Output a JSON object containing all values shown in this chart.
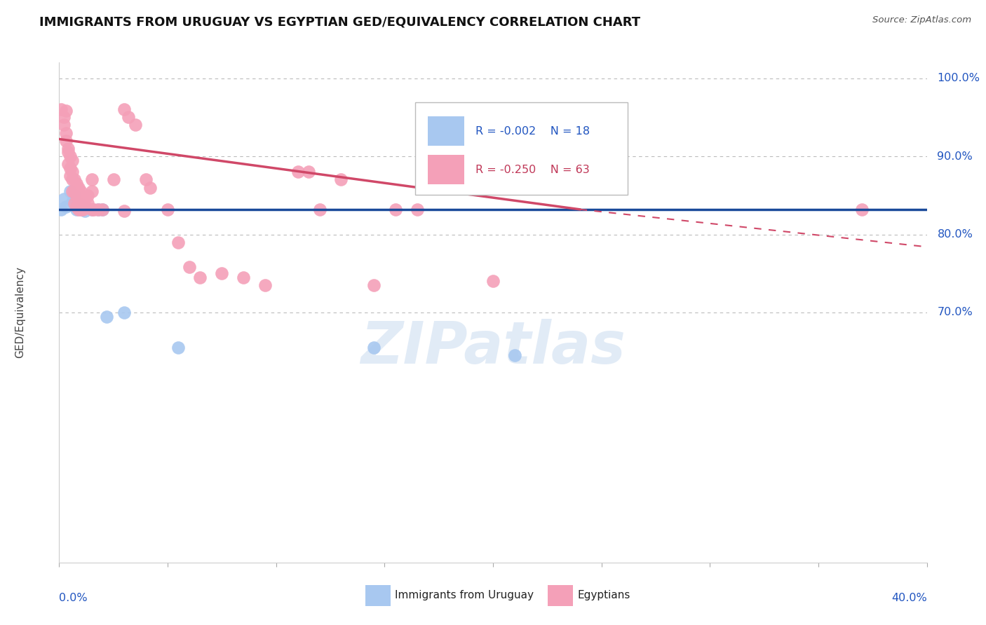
{
  "title": "IMMIGRANTS FROM URUGUAY VS EGYPTIAN GED/EQUIVALENCY CORRELATION CHART",
  "source": "Source: ZipAtlas.com",
  "ylabel": "GED/Equivalency",
  "xlim": [
    0.0,
    0.4
  ],
  "ylim": [
    0.38,
    1.02
  ],
  "legend_r_blue": "R = -0.002",
  "legend_n_blue": "N = 18",
  "legend_r_pink": "R = -0.250",
  "legend_n_pink": "N = 63",
  "blue_color": "#A8C8F0",
  "pink_color": "#F4A0B8",
  "blue_line_color": "#1A4A9A",
  "pink_line_color": "#D04868",
  "blue_text_color": "#2155C0",
  "pink_text_color": "#C03858",
  "gridline_color": "#BBBBBB",
  "watermark": "ZIPatlas",
  "blue_scatter": [
    [
      0.001,
      0.832
    ],
    [
      0.002,
      0.845
    ],
    [
      0.003,
      0.835
    ],
    [
      0.005,
      0.855
    ],
    [
      0.006,
      0.842
    ],
    [
      0.007,
      0.85
    ],
    [
      0.008,
      0.832
    ],
    [
      0.009,
      0.84
    ],
    [
      0.01,
      0.838
    ],
    [
      0.012,
      0.83
    ],
    [
      0.015,
      0.832
    ],
    [
      0.018,
      0.832
    ],
    [
      0.02,
      0.832
    ],
    [
      0.022,
      0.695
    ],
    [
      0.03,
      0.7
    ],
    [
      0.055,
      0.655
    ],
    [
      0.145,
      0.655
    ],
    [
      0.21,
      0.645
    ]
  ],
  "pink_scatter": [
    [
      0.001,
      0.96
    ],
    [
      0.002,
      0.94
    ],
    [
      0.002,
      0.95
    ],
    [
      0.003,
      0.958
    ],
    [
      0.003,
      0.93
    ],
    [
      0.003,
      0.92
    ],
    [
      0.004,
      0.91
    ],
    [
      0.004,
      0.905
    ],
    [
      0.004,
      0.89
    ],
    [
      0.005,
      0.9
    ],
    [
      0.005,
      0.885
    ],
    [
      0.005,
      0.875
    ],
    [
      0.006,
      0.895
    ],
    [
      0.006,
      0.88
    ],
    [
      0.006,
      0.87
    ],
    [
      0.006,
      0.855
    ],
    [
      0.007,
      0.87
    ],
    [
      0.007,
      0.855
    ],
    [
      0.007,
      0.84
    ],
    [
      0.008,
      0.865
    ],
    [
      0.008,
      0.85
    ],
    [
      0.008,
      0.835
    ],
    [
      0.009,
      0.86
    ],
    [
      0.009,
      0.845
    ],
    [
      0.009,
      0.832
    ],
    [
      0.01,
      0.855
    ],
    [
      0.01,
      0.84
    ],
    [
      0.01,
      0.832
    ],
    [
      0.011,
      0.84
    ],
    [
      0.011,
      0.832
    ],
    [
      0.012,
      0.845
    ],
    [
      0.012,
      0.835
    ],
    [
      0.013,
      0.85
    ],
    [
      0.013,
      0.84
    ],
    [
      0.015,
      0.87
    ],
    [
      0.015,
      0.855
    ],
    [
      0.015,
      0.832
    ],
    [
      0.016,
      0.832
    ],
    [
      0.018,
      0.832
    ],
    [
      0.02,
      0.832
    ],
    [
      0.025,
      0.87
    ],
    [
      0.03,
      0.96
    ],
    [
      0.03,
      0.83
    ],
    [
      0.032,
      0.95
    ],
    [
      0.035,
      0.94
    ],
    [
      0.04,
      0.87
    ],
    [
      0.042,
      0.86
    ],
    [
      0.05,
      0.832
    ],
    [
      0.055,
      0.79
    ],
    [
      0.06,
      0.758
    ],
    [
      0.065,
      0.745
    ],
    [
      0.075,
      0.75
    ],
    [
      0.085,
      0.745
    ],
    [
      0.095,
      0.735
    ],
    [
      0.11,
      0.88
    ],
    [
      0.115,
      0.88
    ],
    [
      0.12,
      0.832
    ],
    [
      0.13,
      0.87
    ],
    [
      0.145,
      0.735
    ],
    [
      0.155,
      0.832
    ],
    [
      0.165,
      0.832
    ],
    [
      0.2,
      0.74
    ],
    [
      0.37,
      0.832
    ]
  ],
  "blue_trendline": [
    [
      0.0,
      0.832
    ],
    [
      0.4,
      0.832
    ]
  ],
  "pink_trendline_solid": [
    [
      0.0,
      0.922
    ],
    [
      0.24,
      0.832
    ]
  ],
  "pink_trendline_dashed": [
    [
      0.24,
      0.832
    ],
    [
      0.42,
      0.778
    ]
  ],
  "yticks": [
    1.0,
    0.9,
    0.8,
    0.7
  ],
  "ytick_labels": [
    "100.0%",
    "90.0%",
    "80.0%",
    "70.0%"
  ],
  "xtick_positions": [
    0.0,
    0.05,
    0.1,
    0.15,
    0.2,
    0.25,
    0.3,
    0.35,
    0.4
  ]
}
